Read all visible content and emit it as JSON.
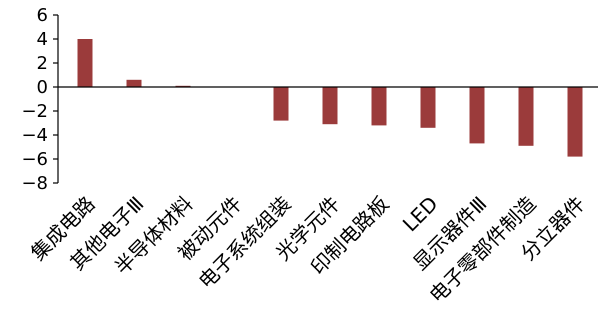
{
  "chart_data": {
    "type": "bar",
    "categories": [
      "集成电路",
      "其他电子Ⅲ",
      "半导体材料",
      "被动元件",
      "电子系统组装",
      "光学元件",
      "印制电路板",
      "LED",
      "显示器件Ⅲ",
      "电子零部件制造",
      "分立器件"
    ],
    "values": [
      4.0,
      0.6,
      0.1,
      0.0,
      -2.8,
      -3.1,
      -3.2,
      -3.4,
      -4.7,
      -4.9,
      -5.8
    ],
    "ylim": [
      -8,
      6
    ],
    "yticks": [
      6,
      4,
      2,
      0,
      -2,
      -4,
      -6,
      -8
    ],
    "ytick_labels": [
      "6",
      "4",
      "2",
      "0",
      "−2",
      "−4",
      "−6",
      "−8"
    ],
    "grid": false,
    "legend": "none",
    "colors": {
      "bar": "#9b3b3b",
      "axis": "#000000"
    }
  }
}
